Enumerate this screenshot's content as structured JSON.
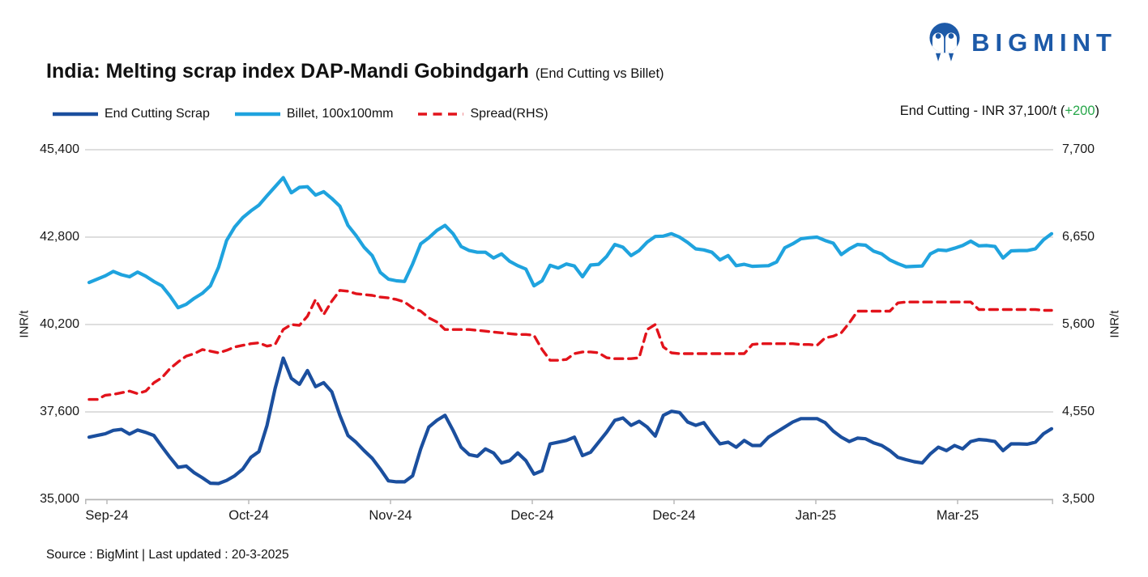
{
  "logo": {
    "brand": "BIGMINT"
  },
  "header": {
    "title": "India: Melting scrap index DAP-Mandi Gobindgarh",
    "subtitle": "(End Cutting vs Billet)"
  },
  "annotation": {
    "before": "End Cutting - INR 37,100/t (",
    "change": "+200",
    "after": ")"
  },
  "footer": {
    "source": "Source : BigMint | Last updated : 20-3-2025"
  },
  "colors": {
    "brand_blue": "#1D5AA8",
    "end_cutting": "#1B4F9E",
    "billet": "#1FA3DE",
    "spread": "#E2131B",
    "positive_green": "#27A74A",
    "gridline": "#CBCBCB",
    "axis_line": "#B5B5B5"
  },
  "chart_data": {
    "type": "line",
    "title": "India: Melting scrap index DAP-Mandi Gobindgarh",
    "subtitle": "(End Cutting vs Billet)",
    "ylabel_left": "INR/t",
    "ylabel_right": "INR/t",
    "grid": true,
    "legend_position": "top-left",
    "x_tick_labels": [
      "Sep-24",
      "Oct-24",
      "Nov-24",
      "Dec-24",
      "Dec-24",
      "Jan-25",
      "Mar-25"
    ],
    "left_axis": {
      "min": 35000,
      "max": 45400,
      "ticks": [
        45400,
        42800,
        40200,
        37600,
        35000
      ],
      "tick_labels": [
        "45,400",
        "42,800",
        "40,200",
        "37,600",
        "35,000"
      ]
    },
    "right_axis": {
      "min": 3500,
      "max": 7700,
      "ticks": [
        7700,
        6650,
        5600,
        4550,
        3500
      ],
      "tick_labels": [
        "7,700",
        "6,650",
        "5,600",
        "4,550",
        "3,500"
      ]
    },
    "latest": {
      "label": "End Cutting",
      "value_inr_t": 37100,
      "change": 200
    },
    "series": [
      {
        "name": "End Cutting Scrap",
        "axis": "left",
        "color": "#1B4F9E",
        "style": "solid",
        "values": [
          36850,
          36900,
          36950,
          37050,
          37080,
          36940,
          37060,
          36990,
          36900,
          36570,
          36250,
          35950,
          35990,
          35790,
          35640,
          35480,
          35470,
          35560,
          35700,
          35900,
          36250,
          36420,
          37200,
          38300,
          39200,
          38600,
          38420,
          38830,
          38350,
          38470,
          38200,
          37500,
          36900,
          36700,
          36450,
          36220,
          35900,
          35550,
          35520,
          35520,
          35700,
          36500,
          37150,
          37350,
          37500,
          37050,
          36550,
          36330,
          36280,
          36500,
          36380,
          36080,
          36150,
          36380,
          36150,
          35750,
          35850,
          36650,
          36700,
          36750,
          36850,
          36300,
          36400,
          36700,
          37000,
          37350,
          37420,
          37200,
          37320,
          37150,
          36880,
          37500,
          37620,
          37580,
          37300,
          37200,
          37280,
          36950,
          36650,
          36700,
          36550,
          36750,
          36600,
          36600,
          36850,
          37000,
          37150,
          37300,
          37400,
          37400,
          37400,
          37280,
          37030,
          36850,
          36720,
          36820,
          36800,
          36680,
          36600,
          36450,
          36250,
          36180,
          36120,
          36080,
          36350,
          36550,
          36450,
          36600,
          36500,
          36720,
          36780,
          36760,
          36720,
          36450,
          36650,
          36650,
          36640,
          36700,
          36950,
          37100
        ]
      },
      {
        "name": "Billet, 100x100mm",
        "axis": "left",
        "color": "#1FA3DE",
        "style": "solid",
        "values": [
          41450,
          41550,
          41650,
          41780,
          41680,
          41620,
          41760,
          41640,
          41480,
          41350,
          41050,
          40700,
          40800,
          40980,
          41130,
          41350,
          41900,
          42700,
          43100,
          43380,
          43580,
          43750,
          44030,
          44300,
          44570,
          44120,
          44280,
          44300,
          44050,
          44150,
          43950,
          43720,
          43150,
          42850,
          42500,
          42250,
          41750,
          41550,
          41500,
          41480,
          42000,
          42600,
          42780,
          43000,
          43150,
          42900,
          42520,
          42400,
          42350,
          42350,
          42180,
          42300,
          42080,
          41950,
          41850,
          41350,
          41500,
          41960,
          41880,
          42000,
          41940,
          41620,
          41970,
          41990,
          42230,
          42580,
          42500,
          42250,
          42400,
          42650,
          42820,
          42830,
          42900,
          42800,
          42640,
          42450,
          42420,
          42350,
          42120,
          42250,
          41950,
          41990,
          41930,
          41940,
          41950,
          42060,
          42480,
          42600,
          42750,
          42780,
          42800,
          42700,
          42620,
          42280,
          42450,
          42580,
          42560,
          42380,
          42300,
          42120,
          42010,
          41920,
          41930,
          41940,
          42300,
          42420,
          42400,
          42470,
          42550,
          42680,
          42540,
          42550,
          42520,
          42180,
          42390,
          42400,
          42400,
          42450,
          42720,
          42900
        ]
      },
      {
        "name": "Spread(RHS)",
        "axis": "right",
        "color": "#E2131B",
        "style": "dashed",
        "values": [
          4700,
          4700,
          4750,
          4760,
          4780,
          4800,
          4770,
          4800,
          4900,
          4960,
          5070,
          5150,
          5220,
          5250,
          5300,
          5280,
          5260,
          5290,
          5330,
          5350,
          5370,
          5380,
          5340,
          5360,
          5540,
          5600,
          5590,
          5700,
          5900,
          5720,
          5880,
          6010,
          6000,
          5970,
          5960,
          5950,
          5930,
          5920,
          5900,
          5870,
          5800,
          5760,
          5680,
          5630,
          5540,
          5540,
          5540,
          5540,
          5530,
          5520,
          5510,
          5500,
          5490,
          5480,
          5480,
          5470,
          5300,
          5170,
          5170,
          5180,
          5250,
          5270,
          5270,
          5260,
          5200,
          5190,
          5190,
          5190,
          5200,
          5540,
          5600,
          5330,
          5260,
          5250,
          5250,
          5250,
          5250,
          5250,
          5250,
          5250,
          5250,
          5250,
          5360,
          5370,
          5370,
          5370,
          5370,
          5370,
          5360,
          5360,
          5350,
          5440,
          5460,
          5500,
          5620,
          5760,
          5760,
          5760,
          5760,
          5760,
          5860,
          5870,
          5870,
          5870,
          5870,
          5870,
          5870,
          5870,
          5870,
          5870,
          5780,
          5780,
          5780,
          5780,
          5780,
          5780,
          5780,
          5780,
          5770,
          5770
        ]
      }
    ]
  }
}
